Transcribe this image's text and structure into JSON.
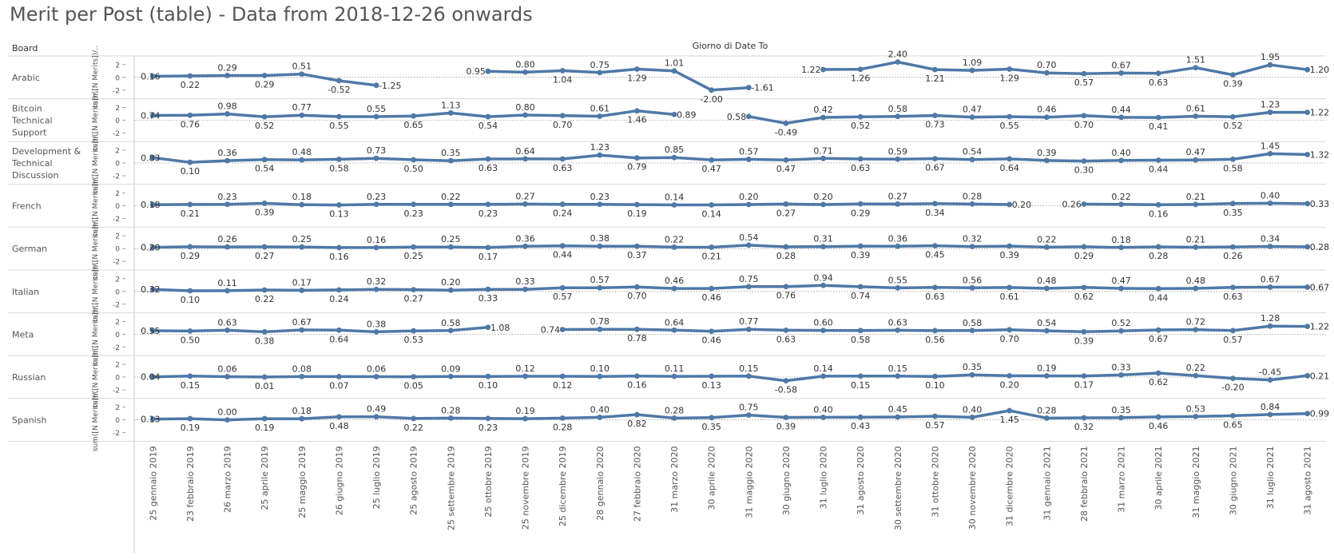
{
  "page": {
    "title": "Merit per Post (table) - Data from 2018-12-26 onwards"
  },
  "chart_data": {
    "type": "line",
    "column_header": "Board",
    "x_header": "Giorno di Date To",
    "y_axis_label": "sum([N Merits])/..",
    "y_ticks": [
      2,
      0,
      -2
    ],
    "ylim": [
      -2.6,
      2.6
    ],
    "colors": {
      "line": "#4e79a7",
      "gridline": "#d9d9d9",
      "reference": "#999999"
    },
    "dates": [
      "25 gennaio 2019",
      "23 febbraio 2019",
      "26 marzo 2019",
      "25 aprile 2019",
      "25 maggio 2019",
      "26 giugno 2019",
      "25 luglio 2019",
      "25 agosto 2019",
      "25 settembre 2019",
      "25 ottobre 2019",
      "25 novembre 2019",
      "25 dicembre 2019",
      "28 gennaio 2020",
      "27 febbraio 2020",
      "31 marzo 2020",
      "30 aprile 2020",
      "31 maggio 2020",
      "30 giugno 2020",
      "31 luglio 2020",
      "31 agosto 2020",
      "30 settembre 2020",
      "31 ottobre 2020",
      "30 novembre 2020",
      "31 dicembre 2020",
      "31 gennaio 2021",
      "28 febbraio 2021",
      "31 marzo 2021",
      "30 aprile 2021",
      "31 maggio 2021",
      "30 giugno 2021",
      "31 luglio 2021",
      "31 agosto 2021"
    ],
    "series": [
      {
        "name": "Arabic",
        "values": [
          0.16,
          0.22,
          0.29,
          0.29,
          0.51,
          -0.52,
          -1.25,
          null,
          null,
          0.95,
          0.8,
          1.04,
          0.75,
          1.29,
          1.01,
          -2.0,
          -1.61,
          null,
          1.22,
          1.26,
          2.4,
          1.21,
          1.09,
          1.29,
          0.7,
          0.57,
          0.67,
          0.63,
          1.51,
          0.39,
          1.95,
          1.2
        ]
      },
      {
        "name": "Bitcoin Technical Support",
        "values": [
          0.74,
          0.76,
          0.98,
          0.52,
          0.77,
          0.55,
          0.55,
          0.65,
          1.13,
          0.54,
          0.8,
          0.7,
          0.61,
          1.46,
          0.89,
          null,
          0.58,
          -0.49,
          0.42,
          0.52,
          0.58,
          0.73,
          0.47,
          0.55,
          0.46,
          0.7,
          0.44,
          0.41,
          0.61,
          0.52,
          1.23,
          1.22
        ]
      },
      {
        "name": "Development & Technical Discussion",
        "values": [
          0.83,
          0.1,
          0.36,
          0.54,
          0.48,
          0.58,
          0.73,
          0.5,
          0.35,
          0.63,
          0.64,
          0.63,
          1.23,
          0.79,
          0.85,
          0.47,
          0.57,
          0.47,
          0.71,
          0.63,
          0.59,
          0.67,
          0.54,
          0.64,
          0.39,
          0.3,
          0.4,
          0.44,
          0.47,
          0.58,
          1.45,
          1.32
        ]
      },
      {
        "name": "French",
        "values": [
          0.18,
          0.21,
          0.23,
          0.39,
          0.18,
          0.13,
          0.23,
          0.23,
          0.22,
          0.23,
          0.27,
          0.24,
          0.23,
          0.19,
          0.14,
          0.14,
          0.2,
          0.27,
          0.2,
          0.29,
          0.27,
          0.34,
          0.28,
          0.2,
          null,
          0.26,
          0.22,
          0.16,
          0.21,
          0.35,
          0.4,
          0.33
        ]
      },
      {
        "name": "German",
        "values": [
          0.2,
          0.29,
          0.26,
          0.27,
          0.25,
          0.16,
          0.16,
          0.25,
          0.25,
          0.17,
          0.36,
          0.44,
          0.38,
          0.37,
          0.22,
          0.21,
          0.54,
          0.28,
          0.31,
          0.39,
          0.36,
          0.45,
          0.32,
          0.39,
          0.22,
          0.29,
          0.18,
          0.28,
          0.21,
          0.26,
          0.34,
          0.28
        ]
      },
      {
        "name": "Italian",
        "values": [
          0.32,
          0.1,
          0.11,
          0.22,
          0.17,
          0.24,
          0.32,
          0.27,
          0.2,
          0.33,
          0.33,
          0.57,
          0.57,
          0.7,
          0.46,
          0.46,
          0.75,
          0.76,
          0.94,
          0.74,
          0.55,
          0.63,
          0.56,
          0.61,
          0.48,
          0.62,
          0.47,
          0.44,
          0.48,
          0.63,
          0.67,
          0.67
        ]
      },
      {
        "name": "Meta",
        "values": [
          0.55,
          0.5,
          0.63,
          0.38,
          0.67,
          0.64,
          0.38,
          0.53,
          0.58,
          1.08,
          null,
          0.74,
          0.78,
          0.78,
          0.64,
          0.46,
          0.77,
          0.63,
          0.6,
          0.58,
          0.63,
          0.56,
          0.58,
          0.7,
          0.54,
          0.39,
          0.52,
          0.67,
          0.72,
          0.57,
          1.28,
          1.22
        ]
      },
      {
        "name": "Russian",
        "values": [
          0.04,
          0.15,
          0.06,
          0.01,
          0.08,
          0.07,
          0.06,
          0.05,
          0.09,
          0.1,
          0.12,
          0.12,
          0.1,
          0.16,
          0.11,
          0.13,
          0.15,
          -0.58,
          0.14,
          0.15,
          0.15,
          0.1,
          0.35,
          0.2,
          0.19,
          0.17,
          0.33,
          0.62,
          0.22,
          -0.2,
          -0.45,
          0.21
        ]
      },
      {
        "name": "Spanish",
        "values": [
          0.13,
          0.19,
          0.0,
          0.19,
          0.18,
          0.48,
          0.49,
          0.22,
          0.28,
          0.23,
          0.19,
          0.28,
          0.4,
          0.82,
          0.28,
          0.35,
          0.75,
          0.39,
          0.4,
          0.43,
          0.45,
          0.57,
          0.4,
          1.45,
          0.28,
          0.32,
          0.35,
          0.46,
          0.53,
          0.65,
          0.84,
          0.99
        ]
      }
    ]
  }
}
